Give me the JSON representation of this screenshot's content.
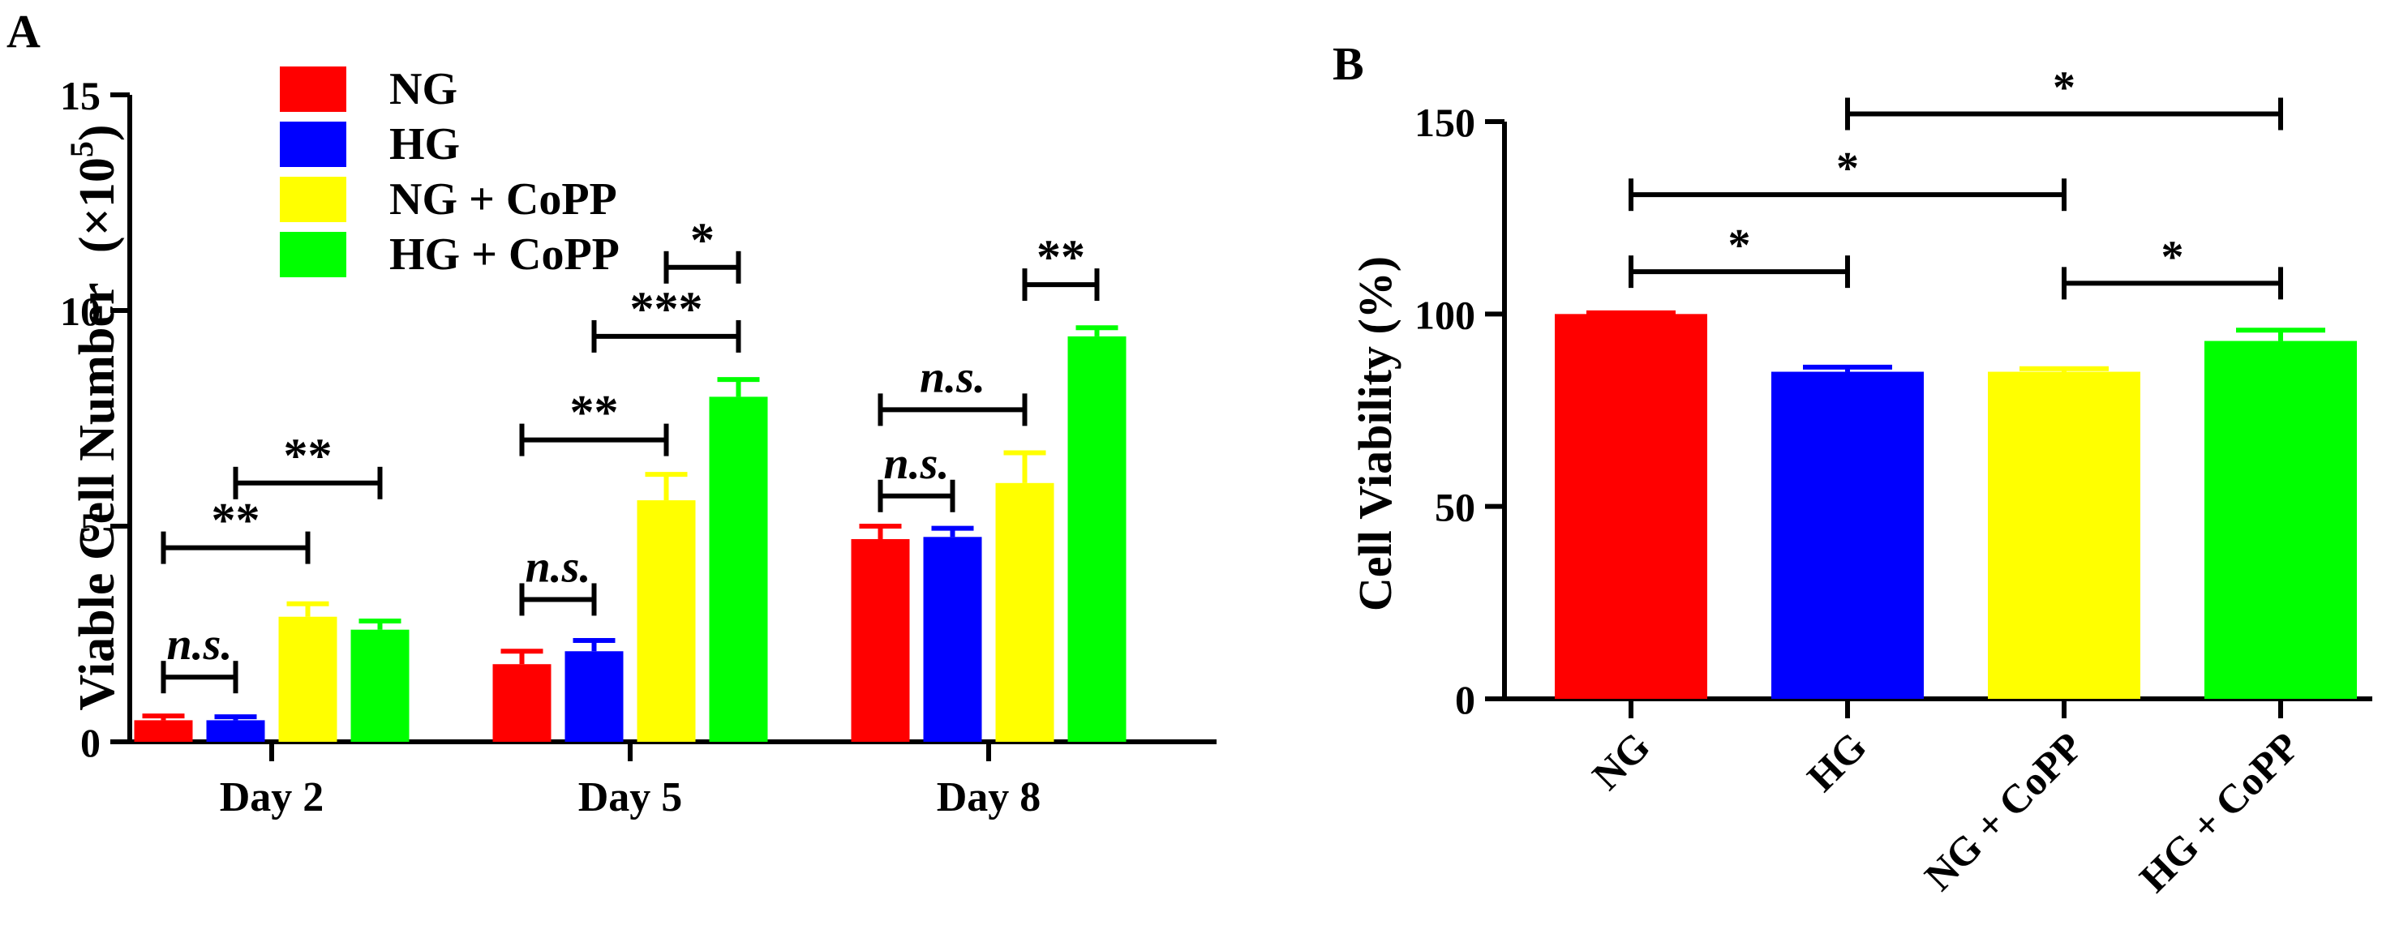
{
  "panelA": {
    "label": "A",
    "chart_data": {
      "type": "bar",
      "ylabel": "Viable Cell Number",
      "ylabel_unit_prefix": "(×10",
      "ylabel_unit_exp": "5",
      "ylabel_unit_suffix": ")",
      "ylim": [
        0,
        15
      ],
      "yticks": [
        "0",
        "5",
        "10",
        "15"
      ],
      "categories": [
        "Day 2",
        "Day 5",
        "Day 8"
      ],
      "series": [
        {
          "name": "NG",
          "color": "#ff0000",
          "values": [
            0.5,
            1.8,
            4.7
          ],
          "errors": [
            0.1,
            0.3,
            0.3
          ]
        },
        {
          "name": "HG",
          "color": "#0000ff",
          "values": [
            0.5,
            2.1,
            4.75
          ],
          "errors": [
            0.08,
            0.25,
            0.2
          ]
        },
        {
          "name": "NG + CoPP",
          "color": "#ffff00",
          "values": [
            2.9,
            5.6,
            6.0
          ],
          "errors": [
            0.3,
            0.6,
            0.7
          ]
        },
        {
          "name": "HG + CoPP",
          "color": "#00ff00",
          "values": [
            2.6,
            8.0,
            9.4
          ],
          "errors": [
            0.2,
            0.4,
            0.2
          ]
        }
      ],
      "comparisons": [
        {
          "category": 0,
          "from": 0,
          "to": 1,
          "label": "n.s.",
          "italic": true,
          "level": 1.5
        },
        {
          "category": 0,
          "from": 0,
          "to": 2,
          "label": "**",
          "italic": false,
          "level": 4.5
        },
        {
          "category": 0,
          "from": 1,
          "to": 3,
          "label": "**",
          "italic": false,
          "level": 6.0
        },
        {
          "category": 1,
          "from": 0,
          "to": 1,
          "label": "n.s.",
          "italic": true,
          "level": 3.3
        },
        {
          "category": 1,
          "from": 0,
          "to": 2,
          "label": "**",
          "italic": false,
          "level": 7.0
        },
        {
          "category": 1,
          "from": 1,
          "to": 3,
          "label": "***",
          "italic": false,
          "level": 9.4
        },
        {
          "category": 1,
          "from": 2,
          "to": 3,
          "label": "*",
          "italic": false,
          "level": 11.0
        },
        {
          "category": 2,
          "from": 0,
          "to": 1,
          "label": "n.s.",
          "italic": true,
          "level": 5.7
        },
        {
          "category": 2,
          "from": 0,
          "to": 2,
          "label": "n.s.",
          "italic": true,
          "level": 7.7
        },
        {
          "category": 2,
          "from": 2,
          "to": 3,
          "label": "**",
          "italic": false,
          "level": 10.6
        }
      ]
    }
  },
  "panelB": {
    "label": "B",
    "chart_data": {
      "type": "bar",
      "ylabel": "Cell Viability (%)",
      "ylim": [
        0,
        150
      ],
      "yticks": [
        "0",
        "50",
        "100",
        "150"
      ],
      "categories": [
        "NG",
        "HG",
        "NG + CoPP",
        "HG + CoPP"
      ],
      "colors": [
        "#ff0000",
        "#0000ff",
        "#ffff00",
        "#00ff00"
      ],
      "values": [
        100,
        85,
        85,
        93
      ],
      "errors": [
        0.3,
        1.2,
        0.8,
        2.8
      ],
      "comparisons": [
        {
          "from": 0,
          "to": 1,
          "label": "*",
          "level": 111
        },
        {
          "from": 0,
          "to": 2,
          "label": "*",
          "level": 131
        },
        {
          "from": 1,
          "to": 3,
          "label": "*",
          "level": 152
        },
        {
          "from": 2,
          "to": 3,
          "label": "*",
          "level": 108
        }
      ]
    }
  }
}
